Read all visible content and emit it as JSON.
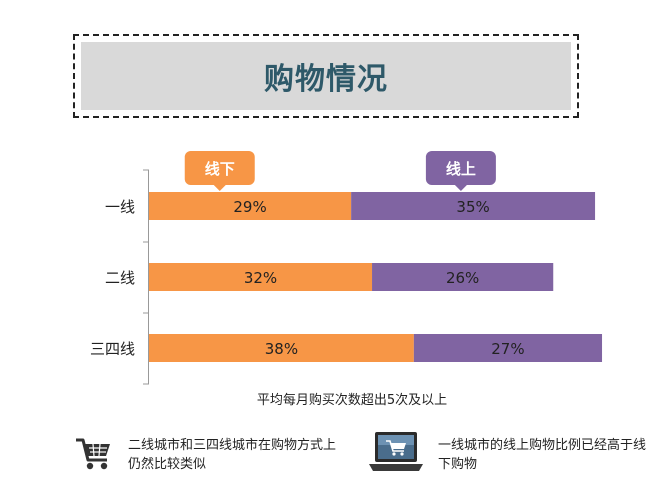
{
  "title": "购物情况",
  "chart_data": {
    "type": "bar",
    "orientation": "horizontal",
    "stacked": true,
    "categories": [
      "一线",
      "二线",
      "三四线"
    ],
    "series": [
      {
        "name": "线下",
        "values": [
          29,
          32,
          38
        ],
        "labels": [
          "29%",
          "32%",
          "38%"
        ],
        "color": "#f79646"
      },
      {
        "name": "线上",
        "values": [
          35,
          26,
          27
        ],
        "labels": [
          "35%",
          "26%",
          "27%"
        ],
        "color": "#8064a2"
      }
    ],
    "xlabel": "平均每月购买次数超出5次及以上",
    "xlim": [
      0,
      66
    ],
    "grid": false,
    "legend": "top"
  },
  "notes": [
    {
      "icon": "shopping-cart-icon",
      "text": "二线城市和三四线城市在购物方式上仍然比较类似"
    },
    {
      "icon": "laptop-cart-icon",
      "text": "一线城市的线上购物比例已经高于线下购物"
    }
  ]
}
